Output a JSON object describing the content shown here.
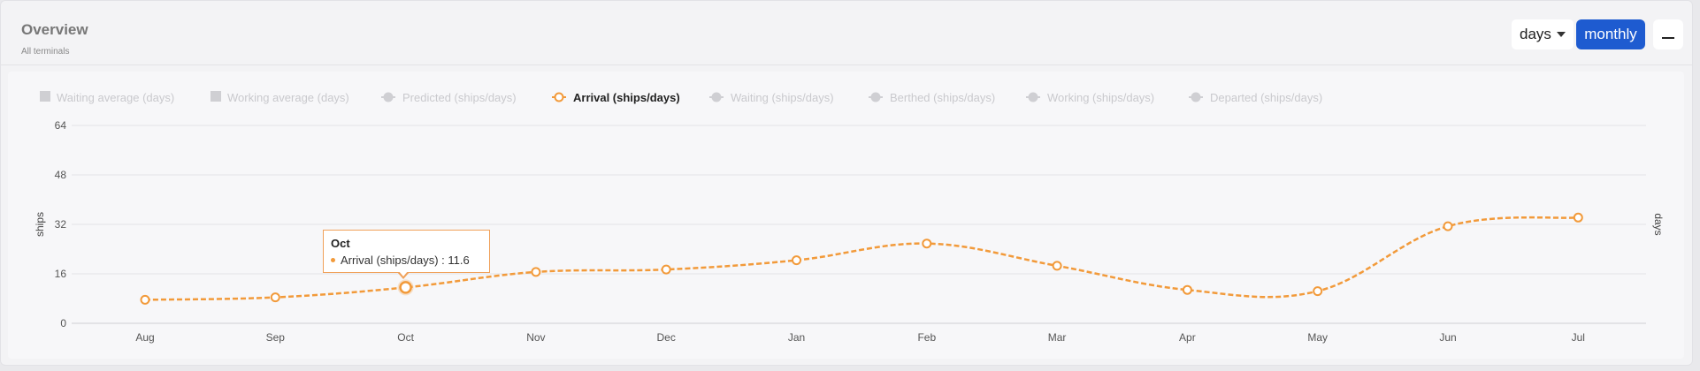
{
  "header": {
    "title": "Overview",
    "subtitle": "All terminals",
    "unit_select": "days",
    "period_button": "monthly"
  },
  "colors": {
    "accent": "#1e5bd0",
    "series": "#f29a3a",
    "legend_inactive": "#cfcfd3"
  },
  "chart_data": {
    "type": "line",
    "categories": [
      "Aug",
      "Sep",
      "Oct",
      "Nov",
      "Dec",
      "Jan",
      "Feb",
      "Mar",
      "Apr",
      "May",
      "Jun",
      "Jul"
    ],
    "series": [
      {
        "name": "Arrival (ships/days)",
        "values": [
          7.6,
          8.4,
          11.6,
          16.6,
          17.4,
          20.4,
          25.8,
          18.6,
          10.8,
          10.4,
          31.4,
          34.2
        ],
        "active": true
      }
    ],
    "legend": [
      {
        "label": "Waiting average (days)",
        "kind": "square",
        "active": false
      },
      {
        "label": "Working average (days)",
        "kind": "square",
        "active": false
      },
      {
        "label": "Predicted (ships/days)",
        "kind": "line",
        "active": false
      },
      {
        "label": "Arrival (ships/days)",
        "kind": "line",
        "active": true
      },
      {
        "label": "Waiting (ships/days)",
        "kind": "line",
        "active": false
      },
      {
        "label": "Berthed (ships/days)",
        "kind": "line",
        "active": false
      },
      {
        "label": "Working (ships/days)",
        "kind": "line",
        "active": false
      },
      {
        "label": "Departed (ships/days)",
        "kind": "line",
        "active": false
      }
    ],
    "legend_position": "top-left",
    "ylabel": "ships",
    "y2label": "days",
    "yticks": [
      0,
      16,
      32,
      48,
      64
    ],
    "ylim": [
      0,
      64
    ],
    "grid": true,
    "tooltip": {
      "title": "Oct",
      "text": "Arrival (ships/days) : 11.6"
    }
  }
}
